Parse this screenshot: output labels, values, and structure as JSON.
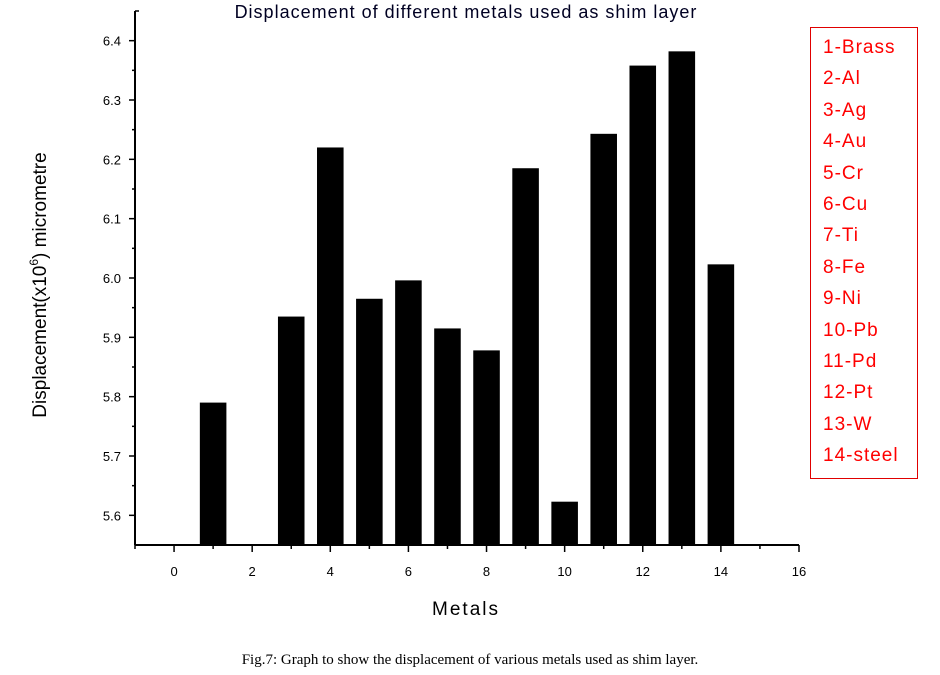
{
  "chart_data": {
    "type": "bar",
    "title": "Displacement of different metals used as shim layer",
    "xlabel": "Metals",
    "ylabel": "Displacement(x10⁶) micrometre",
    "x": [
      1,
      3,
      4,
      5,
      6,
      7,
      8,
      9,
      10,
      11,
      12,
      13,
      14
    ],
    "values": [
      5.79,
      5.935,
      6.22,
      5.965,
      5.996,
      5.915,
      5.878,
      6.185,
      5.623,
      6.243,
      6.358,
      6.382,
      6.023
    ],
    "xlim": [
      -1,
      16
    ],
    "ylim": [
      5.55,
      6.45
    ],
    "xticks": [
      "0",
      "2",
      "4",
      "6",
      "8",
      "10",
      "12",
      "14",
      "16"
    ],
    "yticks": [
      "5.6",
      "5.7",
      "5.8",
      "5.9",
      "6.0",
      "6.1",
      "6.2",
      "6.3",
      "6.4"
    ],
    "bar_color": "#000000",
    "grid": false,
    "legend": {
      "placement": "right",
      "color": "#ff0000",
      "entries": [
        "1-Brass",
        "2-Al",
        "3-Ag",
        "4-Au",
        "5-Cr",
        "6-Cu",
        "7-Ti",
        "8-Fe",
        "9-Ni",
        "10-Pb",
        "11-Pd",
        "12-Pt",
        "13-W",
        "14-steel"
      ]
    }
  },
  "caption": "Fig.7: Graph to show the displacement of various metals used as shim layer."
}
